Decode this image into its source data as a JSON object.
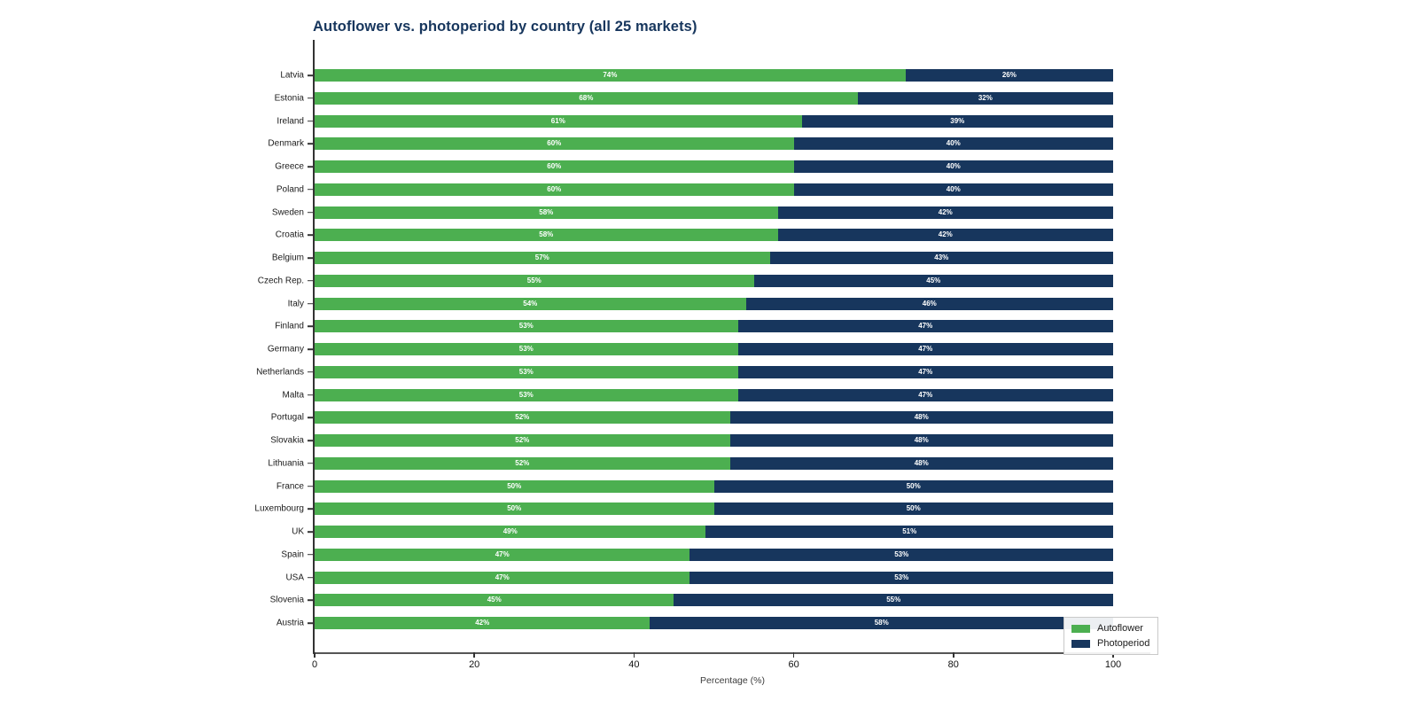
{
  "colors": {
    "autoflower_green": "#4caf50",
    "photoperiod_navy": "#17365d",
    "title_text": "#17365d",
    "axis_spine": "#333333",
    "bar_value_text": "#ffffff"
  },
  "chart_data": {
    "type": "bar",
    "orientation": "horizontal",
    "stacked": true,
    "title": "Autoflower vs. photoperiod by country (all 25 markets)",
    "xlabel": "Percentage (%)",
    "ylabel": "",
    "xlim": [
      0,
      104.5
    ],
    "xticks": [
      0,
      20,
      40,
      60,
      80,
      100
    ],
    "grid": false,
    "legend_position": "lower right",
    "categories": [
      "Latvia",
      "Estonia",
      "Ireland",
      "Denmark",
      "Greece",
      "Poland",
      "Sweden",
      "Croatia",
      "Belgium",
      "Czech Rep.",
      "Italy",
      "Finland",
      "Germany",
      "Netherlands",
      "Malta",
      "Portugal",
      "Slovakia",
      "Lithuania",
      "France",
      "Luxembourg",
      "UK",
      "Spain",
      "USA",
      "Slovenia",
      "Austria"
    ],
    "series": [
      {
        "name": "Autoflower",
        "color": "#4caf50",
        "values": [
          74,
          68,
          61,
          60,
          60,
          60,
          58,
          58,
          57,
          55,
          54,
          53,
          53,
          53,
          53,
          52,
          52,
          52,
          50,
          50,
          49,
          47,
          47,
          45,
          42
        ],
        "labels": [
          "74%",
          "68%",
          "61%",
          "60%",
          "60%",
          "60%",
          "58%",
          "58%",
          "57%",
          "55%",
          "54%",
          "53%",
          "53%",
          "53%",
          "53%",
          "52%",
          "52%",
          "52%",
          "50%",
          "50%",
          "49%",
          "47%",
          "47%",
          "45%",
          "42%"
        ]
      },
      {
        "name": "Photoperiod",
        "color": "#17365d",
        "values": [
          26,
          32,
          39,
          40,
          40,
          40,
          42,
          42,
          43,
          45,
          46,
          47,
          47,
          47,
          47,
          48,
          48,
          48,
          50,
          50,
          51,
          53,
          53,
          55,
          58
        ],
        "labels": [
          "26%",
          "32%",
          "39%",
          "40%",
          "40%",
          "40%",
          "42%",
          "42%",
          "43%",
          "45%",
          "46%",
          "47%",
          "47%",
          "47%",
          "47%",
          "48%",
          "48%",
          "48%",
          "50%",
          "50%",
          "51%",
          "53%",
          "53%",
          "55%",
          "58%"
        ]
      }
    ]
  }
}
